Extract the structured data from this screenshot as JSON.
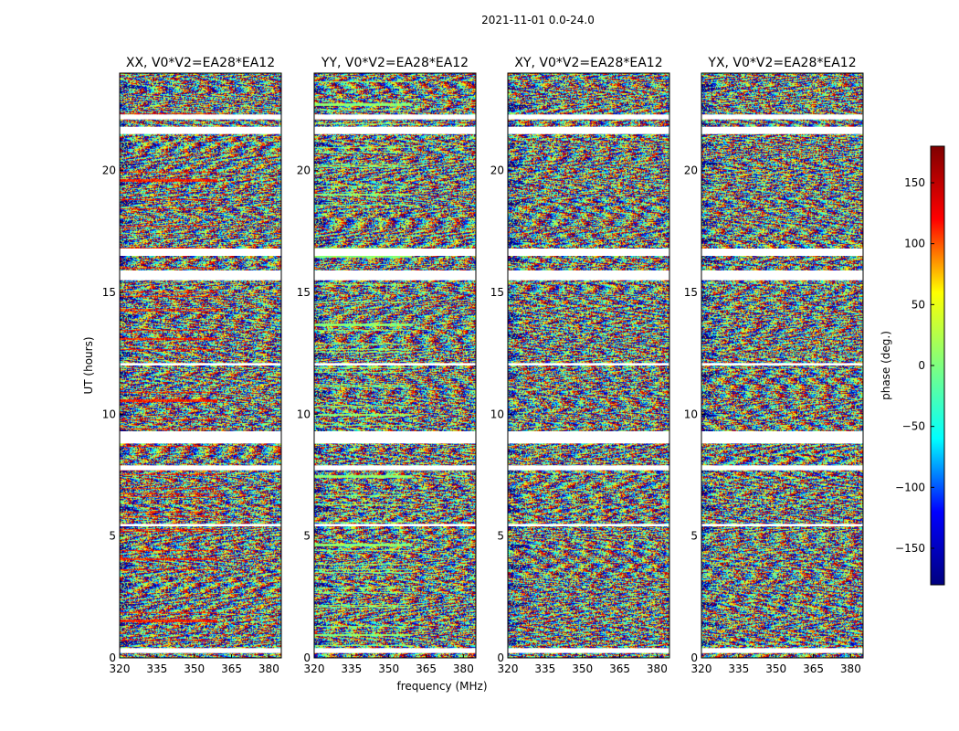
{
  "chart_data": {
    "type": "heatmap",
    "suptitle": "2021-11-01 0.0-24.0",
    "xlabel": "frequency (MHz)",
    "ylabel": "UT (hours)",
    "xlim": [
      320,
      385
    ],
    "ylim": [
      0,
      24
    ],
    "x_ticks": [
      320,
      335,
      350,
      365,
      380
    ],
    "y_ticks": [
      0,
      5,
      10,
      15,
      20
    ],
    "colorbar": {
      "label": "phase (deg.)",
      "range": [
        -180,
        180
      ],
      "ticks": [
        150,
        100,
        50,
        0,
        -50,
        -100,
        -150
      ],
      "tick_labels": [
        "150",
        "100",
        "50",
        "0",
        "−50",
        "−100",
        "−150"
      ],
      "colormap": "jet",
      "colors": [
        "#00007f",
        "#0000ff",
        "#00ffff",
        "#7fff7f",
        "#ffff00",
        "#ff0000",
        "#7f0000"
      ]
    },
    "panels": [
      {
        "title": "XX, V0*V2=EA28*EA12",
        "polarization": "XX"
      },
      {
        "title": "YY, V0*V2=EA28*EA12",
        "polarization": "YY"
      },
      {
        "title": "XY, V0*V2=EA28*EA12",
        "polarization": "XY"
      },
      {
        "title": "YX, V0*V2=EA28*EA12",
        "polarization": "YX"
      }
    ],
    "blank_intervals_ut": [
      [
        16.5,
        16.8
      ],
      [
        15.5,
        15.9
      ],
      [
        8.8,
        9.3
      ],
      [
        7.7,
        7.9
      ],
      [
        21.5,
        21.8
      ],
      [
        22.1,
        22.3
      ],
      [
        12.0,
        12.1
      ],
      [
        0.2,
        0.4
      ],
      [
        5.4,
        5.5
      ]
    ]
  }
}
